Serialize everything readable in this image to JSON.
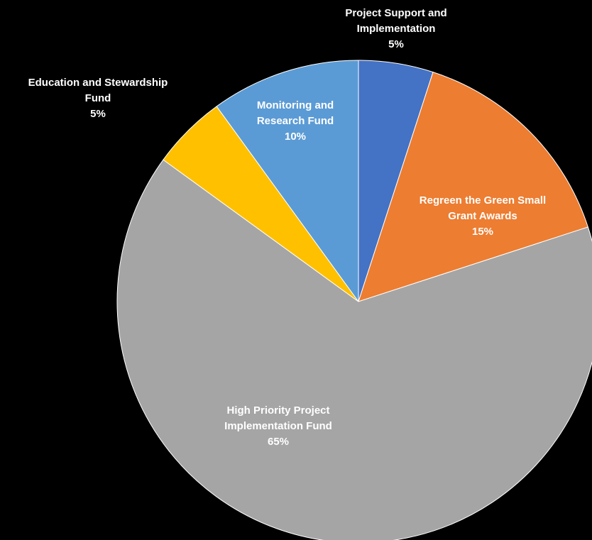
{
  "colors": {
    "background": "#000000",
    "slice_edge": "#ffffff",
    "label_on_slice": "#ffffff",
    "label_outside": "#ffffff"
  },
  "chart_data": {
    "type": "pie",
    "title": "",
    "start_angle_deg": 0,
    "direction": "clockwise",
    "legend": "none",
    "slices": [
      {
        "name": "Project Support and Implementation",
        "label_lines": [
          "Project Support and",
          "Implementation"
        ],
        "percent_label": "5%",
        "value": 5,
        "color": "#4472C4",
        "label_position": "outside"
      },
      {
        "name": "Regreen the Green Small Grant Awards",
        "label_lines": [
          "Regreen the Green Small",
          "Grant Awards"
        ],
        "percent_label": "15%",
        "value": 15,
        "color": "#ED7D31",
        "label_position": "inside"
      },
      {
        "name": "High Priority Project Implementation Fund",
        "label_lines": [
          "High Priority Project",
          "Implementation Fund"
        ],
        "percent_label": "65%",
        "value": 65,
        "color": "#A5A5A5",
        "label_position": "inside"
      },
      {
        "name": "Education and Stewardship Fund",
        "label_lines": [
          "Education and Stewardship",
          "Fund"
        ],
        "percent_label": "5%",
        "value": 5,
        "color": "#FFC000",
        "label_position": "outside"
      },
      {
        "name": "Monitoring and Research Fund",
        "label_lines": [
          "Monitoring and",
          "Research Fund"
        ],
        "percent_label": "10%",
        "value": 10,
        "color": "#5B9BD5",
        "label_position": "inside"
      }
    ]
  }
}
